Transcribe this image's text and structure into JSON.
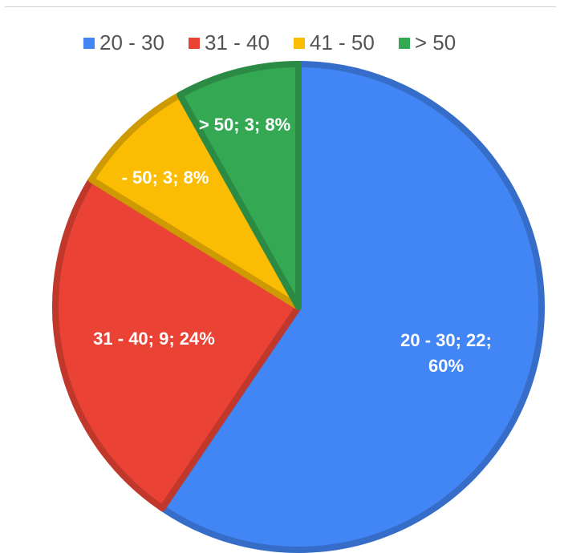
{
  "chart_data": {
    "type": "pie",
    "categories": [
      "20 - 30",
      "31 - 40",
      "41 - 50",
      "> 50"
    ],
    "values": [
      22,
      9,
      3,
      3
    ],
    "percentages": [
      "60%",
      "24%",
      "8%",
      "8%"
    ],
    "colors": [
      "#4285f4",
      "#ea4335",
      "#fbbc04",
      "#34a853"
    ],
    "legend_position": "top",
    "data_labels": [
      [
        "20 - 30; 22;",
        "60%"
      ],
      [
        "31 - 40; 9; 24%"
      ],
      [
        "- 50; 3; 8%"
      ],
      [
        "> 50; 3; 8%"
      ]
    ]
  }
}
